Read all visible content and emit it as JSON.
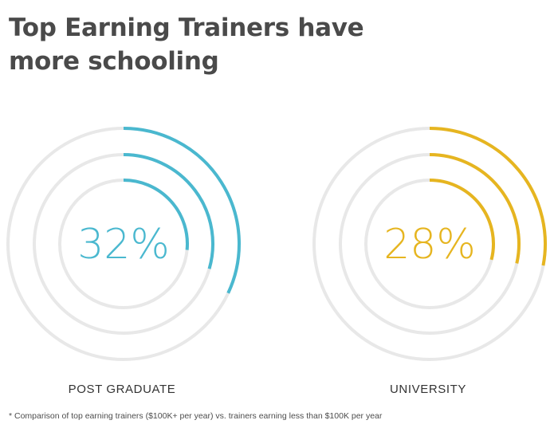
{
  "title_lines": [
    "Top Earning Trainers have",
    "more schooling"
  ],
  "footnote": "* Comparison of top earning trainers ($100K+ per year) vs. trainers earning less than $100K per year",
  "chart_data": [
    {
      "type": "radial-progress",
      "category": "POST GRADUATE",
      "center_value": "32%",
      "color": "#4ab8cf",
      "rings": [
        {
          "ring": "outer",
          "fraction": 0.32
        },
        {
          "ring": "middle",
          "fraction": 0.295
        },
        {
          "ring": "inner",
          "fraction": 0.265
        }
      ]
    },
    {
      "type": "radial-progress",
      "category": "UNIVERSITY",
      "center_value": "28%",
      "color": "#e6b520",
      "rings": [
        {
          "ring": "outer",
          "fraction": 0.28
        },
        {
          "ring": "middle",
          "fraction": 0.285
        },
        {
          "ring": "inner",
          "fraction": 0.29
        }
      ]
    }
  ],
  "colors": {
    "track": "#e8e8e8",
    "title": "#4a4a4a",
    "text": "#333333"
  }
}
